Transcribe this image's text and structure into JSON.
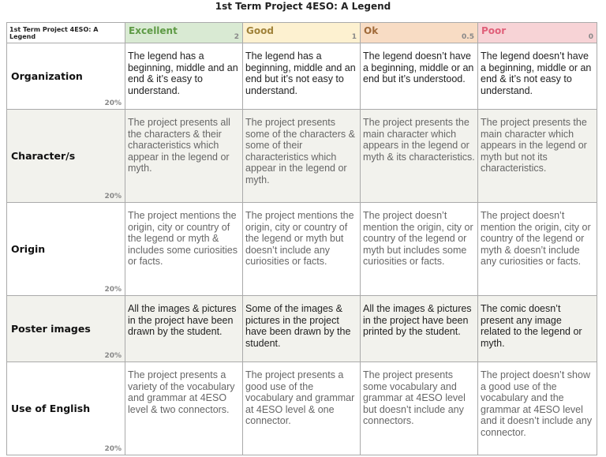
{
  "title": "1st Term Project 4ESO: A Legend",
  "table": {
    "corner": "1st Term Project 4ESO: A Legend",
    "levels": [
      {
        "name": "Excellent",
        "points": "2"
      },
      {
        "name": "Good",
        "points": "1"
      },
      {
        "name": "Ok",
        "points": "0.5"
      },
      {
        "name": "Poor",
        "points": "0"
      }
    ],
    "rows": [
      {
        "criterion": "Organization",
        "weight": "20%",
        "cells": [
          "The legend has a beginning, middle and an end & it’s easy to understand.",
          "The legend has a beginning, middle and an end but it’s not easy to understand.",
          "The legend doesn’t have a beginning, middle or an end but it’s understood.",
          "The legend doesn’t have a beginning, middle or an end & it’s not easy to understand."
        ]
      },
      {
        "criterion": "Character/s",
        "weight": "20%",
        "cells": [
          "The project presents all the characters & their characteristics which appear in the legend or myth.",
          "The project presents some of the characters & some of their characteristics which appear in the legend or myth.",
          "The project presents the main character which appears in the legend or myth & its characteristics.",
          "The project presents the main character which appears in the legend or myth but not its characteristics."
        ]
      },
      {
        "criterion": "Origin",
        "weight": "20%",
        "cells": [
          "The project mentions the origin, city or country of the legend or myth & includes some curiosities or facts.",
          "The project mentions the origin, city or country of the legend or myth but doesn’t include any curiosities or facts.",
          "The project doesn’t mention the origin, city or country of the legend or myth but includes some curiosities or facts.",
          "The project doesn’t mention the origin, city or country of the legend or myth & doesn’t include any curiosities or facts."
        ]
      },
      {
        "criterion": "Poster images",
        "weight": "20%",
        "cells": [
          "All the images & pictures in the project have been drawn by the student.",
          "Some of the images & pictures in the project have been drawn by the student.",
          "All the images & pictures in the project have been printed by the student.",
          "The comic doesn’t present any image related to the legend or myth."
        ]
      },
      {
        "criterion": "Use of English",
        "weight": "20%",
        "cells": [
          "The project presents a variety of the vocabulary and grammar at 4ESO level & two connectors.",
          "The project presents a good use of the vocabulary and grammar at 4ESO level & one connector.",
          "The project presents some vocabulary and grammar at 4ESO level but doesn’t include any connectors.",
          "The project doesn’t show a good use of the vocabulary and the grammar at 4ESO level and it doesn’t include any connector."
        ]
      }
    ]
  }
}
